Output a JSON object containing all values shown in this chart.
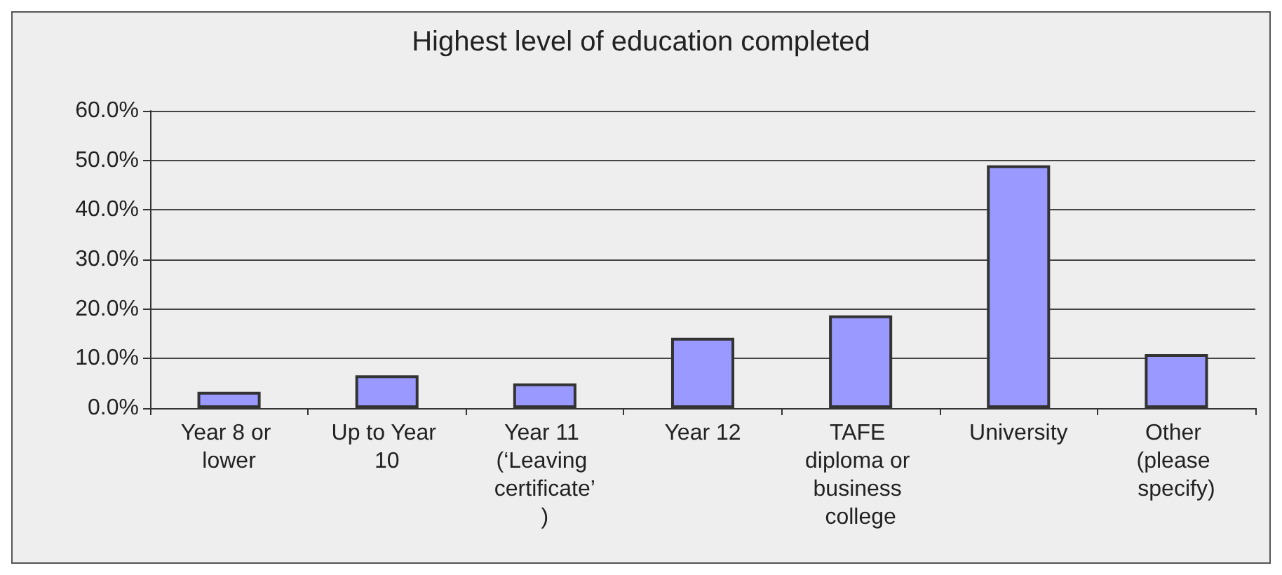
{
  "chart_data": {
    "type": "bar",
    "title": "Highest level of education completed",
    "categories": [
      "Year 8 or lower",
      "Up to Year 10",
      "Year 11 (‘Leaving certificate’)",
      "Year 12",
      "TAFE diploma or business college",
      "University",
      "Other (please specify)"
    ],
    "values": [
      3.3,
      6.6,
      5.0,
      14.2,
      18.7,
      49.0,
      10.9
    ],
    "color": "#9999ff",
    "ylim": [
      0,
      60
    ],
    "yticks": [
      {
        "value": 0,
        "label": "0.0%"
      },
      {
        "value": 10,
        "label": "10.0%"
      },
      {
        "value": 20,
        "label": "20.0%"
      },
      {
        "value": 30,
        "label": "30.0%"
      },
      {
        "value": 40,
        "label": "40.0%"
      },
      {
        "value": 50,
        "label": "50.0%"
      },
      {
        "value": 60,
        "label": "60.0%"
      }
    ],
    "grid": "y"
  }
}
